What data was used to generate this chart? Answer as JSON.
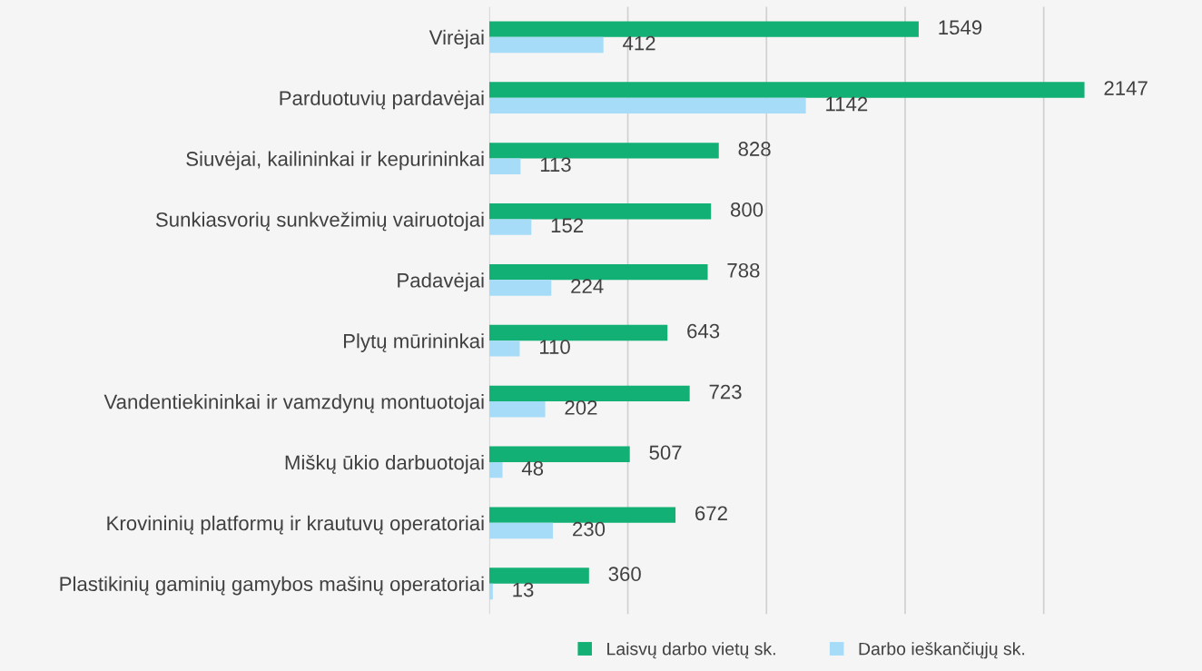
{
  "chart_data": {
    "type": "bar",
    "orientation": "horizontal",
    "categories": [
      "Virėjai",
      "Parduotuvių pardavėjai",
      "Siuvėjai, kailininkai ir kepurininkai",
      "Sunkiasvorių sunkvežimių vairuotojai",
      "Padavėjai",
      "Plytų mūrininkai",
      "Vandentiekininkai ir vamzdynų montuotojai",
      "Miškų ūkio darbuotojai",
      "Krovininių platformų ir krautuvų operatoriai",
      "Plastikinių gaminių gamybos mašinų operatoriai"
    ],
    "series": [
      {
        "name": "Laisvų darbo vietų sk.",
        "color": "#12b074",
        "values": [
          1549,
          2147,
          828,
          800,
          788,
          643,
          723,
          507,
          672,
          360
        ]
      },
      {
        "name": "Darbo ieškančiųjų sk.",
        "color": "#a6dcf8",
        "values": [
          412,
          1142,
          113,
          152,
          224,
          110,
          202,
          48,
          230,
          13
        ]
      }
    ],
    "xticks": [
      {
        "value": 0,
        "label": null
      },
      {
        "value": 500,
        "label": null
      },
      {
        "value": 1000,
        "label": null
      },
      {
        "value": 1500,
        "label": null
      },
      {
        "value": 2000,
        "label": null
      }
    ],
    "grid": "x",
    "data_labels": true,
    "legend": "bottom"
  }
}
